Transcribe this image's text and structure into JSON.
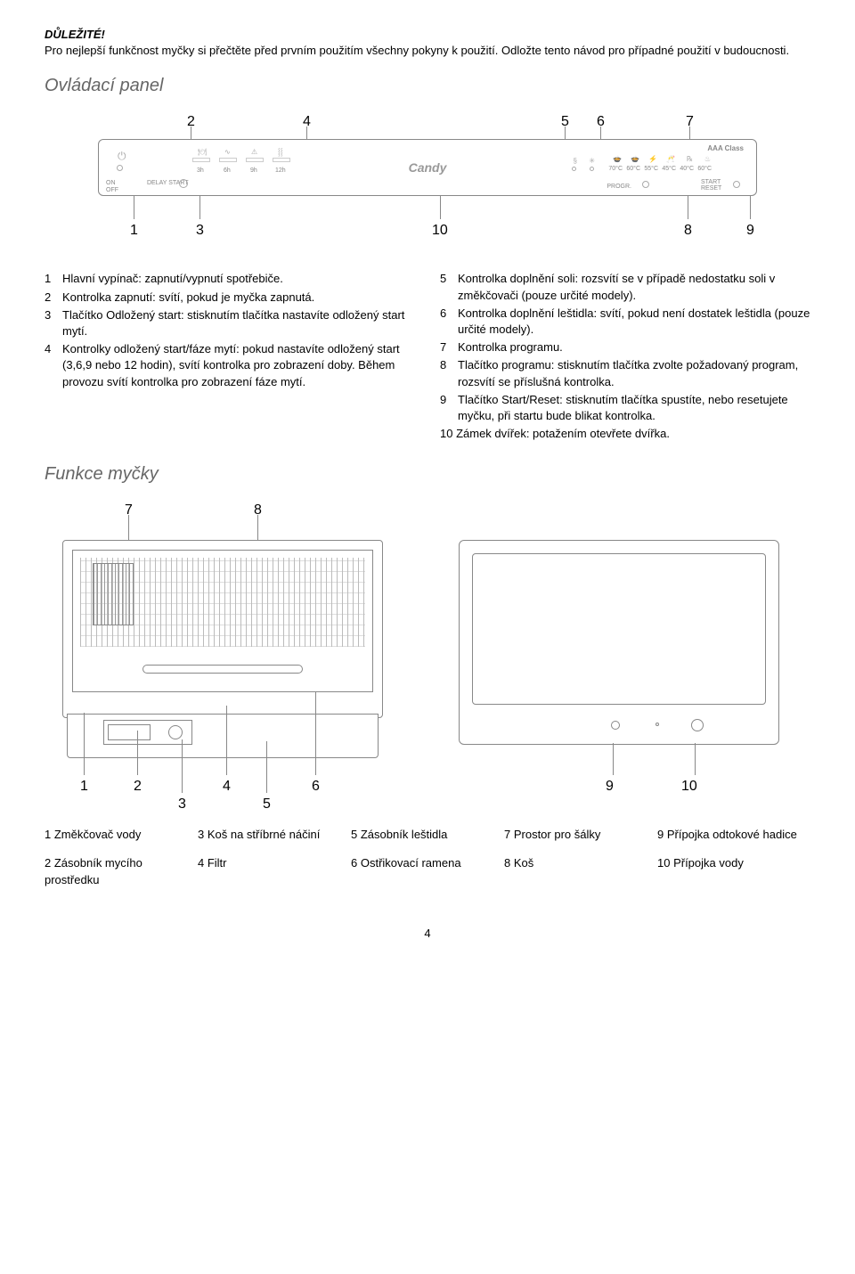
{
  "intro": {
    "important_label": "DŮLEŽITÉ!",
    "intro_text": "Pro nejlepší funkčnost myčky si přečtěte před prvním použitím všechny pokyny k použití. Odložte tento návod pro případné použití v budoucnosti."
  },
  "panel": {
    "title": "Ovládací panel",
    "callouts": [
      "1",
      "2",
      "3",
      "4",
      "5",
      "6",
      "7",
      "8",
      "9",
      "10"
    ],
    "brand": "Candy",
    "aaa": "AAA Class",
    "delay_label": "DELAY START",
    "on_label": "ON",
    "off_label": "OFF",
    "hours": [
      "3h",
      "6h",
      "9h",
      "12h"
    ],
    "temps": [
      "70°C",
      "60°C",
      "55°C",
      "45°C",
      "40°C",
      "60°C"
    ],
    "progr": "PROGR.",
    "start_reset": "START RESET"
  },
  "left_list": [
    {
      "n": "1",
      "t": "Hlavní vypínač: zapnutí/vypnutí spotřebiče."
    },
    {
      "n": "2",
      "t": "Kontrolka zapnutí: svítí, pokud je myčka zapnutá."
    },
    {
      "n": "3",
      "t": "Tlačítko Odložený start: stisknutím tlačítka nastavíte odložený start mytí."
    },
    {
      "n": "4",
      "t": "Kontrolky odložený start/fáze mytí: pokud nastavíte odložený start (3,6,9 nebo 12 hodin), svítí kontrolka pro zobrazení doby. Během provozu svítí kontrolka pro zobrazení fáze mytí."
    }
  ],
  "right_list": [
    {
      "n": "5",
      "t": "Kontrolka doplnění soli: rozsvítí se v případě nedostatku soli v změkčovači (pouze určité modely)."
    },
    {
      "n": "6",
      "t": "Kontrolka doplnění leštidla: svítí, pokud není dostatek leštidla (pouze určité modely)."
    },
    {
      "n": "7",
      "t": "Kontrolka programu."
    },
    {
      "n": "8",
      "t": "Tlačítko programu: stisknutím tlačítka zvolte požadovaný program, rozsvítí se příslušná kontrolka."
    },
    {
      "n": "9",
      "t": "Tlačítko Start/Reset: stisknutím tlačítka spustíte, nebo resetujete myčku, při startu bude blikat kontrolka."
    },
    {
      "n": "10",
      "t": "Zámek dvířek: potažením otevřete dvířka.",
      "nopad": true
    }
  ],
  "features": {
    "title": "Funkce myčky",
    "left_nums": [
      "1",
      "2",
      "3",
      "4",
      "5",
      "6",
      "7",
      "8"
    ],
    "right_nums": [
      "9",
      "10"
    ]
  },
  "legend": {
    "rows": [
      [
        {
          "n": "1",
          "t": "Změkčovač vody"
        },
        {
          "n": "3",
          "t": "Koš na stříbrné náčiní"
        },
        {
          "n": "5",
          "t": "Zásobník leštidla"
        },
        {
          "n": "7",
          "t": "Prostor pro šálky"
        },
        {
          "n": "9",
          "t": "Přípojka odtokové hadice"
        }
      ],
      [
        {
          "n": "2",
          "t": "Zásobník mycího prostředku"
        },
        {
          "n": "4",
          "t": "Filtr"
        },
        {
          "n": "6",
          "t": "Ostřikovací ramena"
        },
        {
          "n": "8",
          "t": "Koš"
        },
        {
          "n": "10",
          "t": "Přípojka vody"
        }
      ]
    ]
  },
  "page_number": "4",
  "colors": {
    "diagram_stroke": "#888888",
    "text": "#000000",
    "title_gray": "#666666"
  }
}
